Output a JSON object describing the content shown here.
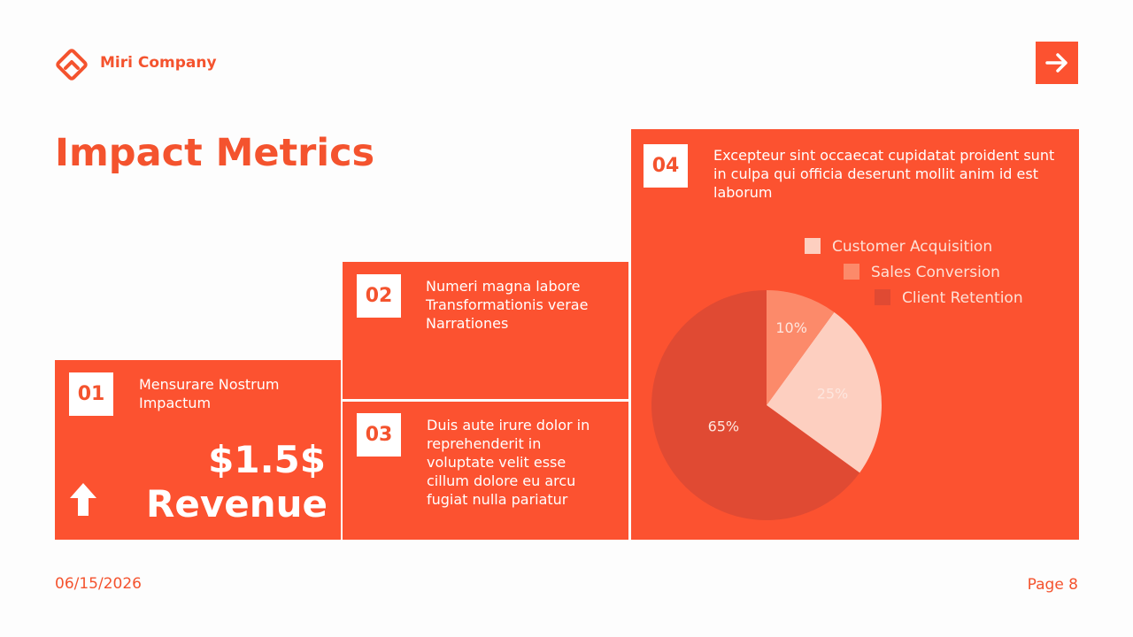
{
  "header": {
    "company": "Miri Company"
  },
  "title": "Impact Metrics",
  "cards": [
    {
      "number": "01",
      "text": "Mensurare Nostrum Impactum",
      "metric": "$1.5$",
      "metric_label": "Revenue"
    },
    {
      "number": "02",
      "text": "Numeri magna labore Transformationis verae Narrationes"
    },
    {
      "number": "03",
      "text": "Duis aute irure dolor in reprehenderit in voluptate velit esse cillum dolore eu arcu fugiat nulla pariatur"
    },
    {
      "number": "04",
      "text": "Excepteur sint occaecat cupidatat proident sunt in culpa qui officia deserunt mollit anim id est laborum"
    }
  ],
  "chart_data": {
    "type": "pie",
    "categories": [
      "Customer Acquisition",
      "Sales Conversion",
      "Client Retention"
    ],
    "values": [
      25,
      10,
      65
    ],
    "value_labels": [
      "25%",
      "10%",
      "65%"
    ],
    "colors": [
      "#fdcfc0",
      "#fc8a6a",
      "#e04a33"
    ]
  },
  "footer": {
    "date": "06/15/2026",
    "page": "Page 8"
  }
}
